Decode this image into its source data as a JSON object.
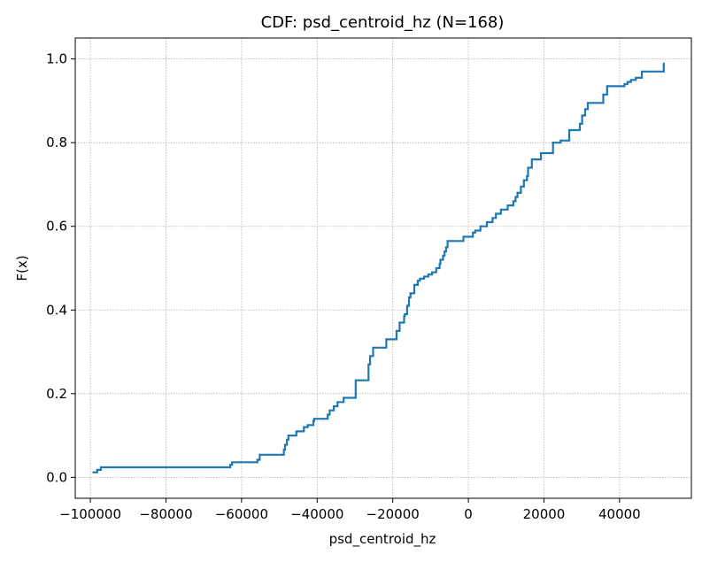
{
  "chart_data": {
    "type": "line",
    "step": true,
    "title": "CDF: psd_centroid_hz  (N=168)",
    "xlabel": "psd_centroid_hz",
    "ylabel": "F(x)",
    "xlim": [
      -104000,
      59000
    ],
    "ylim": [
      -0.05,
      1.05
    ],
    "xticks": [
      -100000,
      -80000,
      -60000,
      -40000,
      -20000,
      0,
      20000,
      40000
    ],
    "xtick_labels": [
      "−100000",
      "−80000",
      "−60000",
      "−40000",
      "−20000",
      "0",
      "20000",
      "40000"
    ],
    "yticks": [
      0.0,
      0.2,
      0.4,
      0.6,
      0.8,
      1.0
    ],
    "ytick_labels": [
      "0.0",
      "0.2",
      "0.4",
      "0.6",
      "0.8",
      "1.0"
    ],
    "grid": true,
    "line_color": "#1f77b4",
    "series": [
      {
        "x": [
          -99300,
          -98200,
          -97200,
          -63000,
          -62500,
          -55800,
          -55200,
          -54800,
          -48800,
          -48500,
          -48000,
          -47600,
          -46500,
          -45500,
          -43500,
          -42500,
          -41000,
          -40800,
          -37200,
          -36700,
          -35600,
          -34600,
          -33000,
          -29800,
          -26400,
          -26000,
          -25200,
          -21700,
          -19000,
          -18200,
          -17000,
          -16800,
          -16200,
          -15700,
          -15300,
          -14300,
          -13400,
          -12800,
          -11700,
          -10600,
          -9600,
          -8500,
          -7600,
          -7400,
          -6700,
          -6300,
          -5900,
          -5500,
          -1300,
          1200,
          1800,
          3200,
          4900,
          6400,
          7300,
          8600,
          10400,
          11900,
          12500,
          13000,
          13900,
          14700,
          15500,
          15800,
          16800,
          19200,
          22400,
          24400,
          26700,
          29500,
          30100,
          30900,
          31600,
          35700,
          36700,
          41300,
          42100,
          43000,
          44300,
          45900,
          51700
        ],
        "y": [
          0.012,
          0.018,
          0.024,
          0.03,
          0.036,
          0.042,
          0.054,
          0.054,
          0.066,
          0.078,
          0.09,
          0.1,
          0.1,
          0.11,
          0.12,
          0.125,
          0.135,
          0.14,
          0.15,
          0.16,
          0.17,
          0.18,
          0.19,
          0.232,
          0.27,
          0.29,
          0.31,
          0.33,
          0.35,
          0.37,
          0.385,
          0.39,
          0.41,
          0.43,
          0.44,
          0.46,
          0.47,
          0.475,
          0.48,
          0.485,
          0.49,
          0.5,
          0.51,
          0.52,
          0.53,
          0.54,
          0.55,
          0.565,
          0.575,
          0.585,
          0.59,
          0.6,
          0.61,
          0.62,
          0.63,
          0.64,
          0.65,
          0.66,
          0.67,
          0.68,
          0.695,
          0.71,
          0.72,
          0.74,
          0.76,
          0.775,
          0.8,
          0.805,
          0.83,
          0.845,
          0.865,
          0.88,
          0.895,
          0.915,
          0.935,
          0.94,
          0.945,
          0.95,
          0.955,
          0.97,
          0.99
        ]
      }
    ]
  }
}
